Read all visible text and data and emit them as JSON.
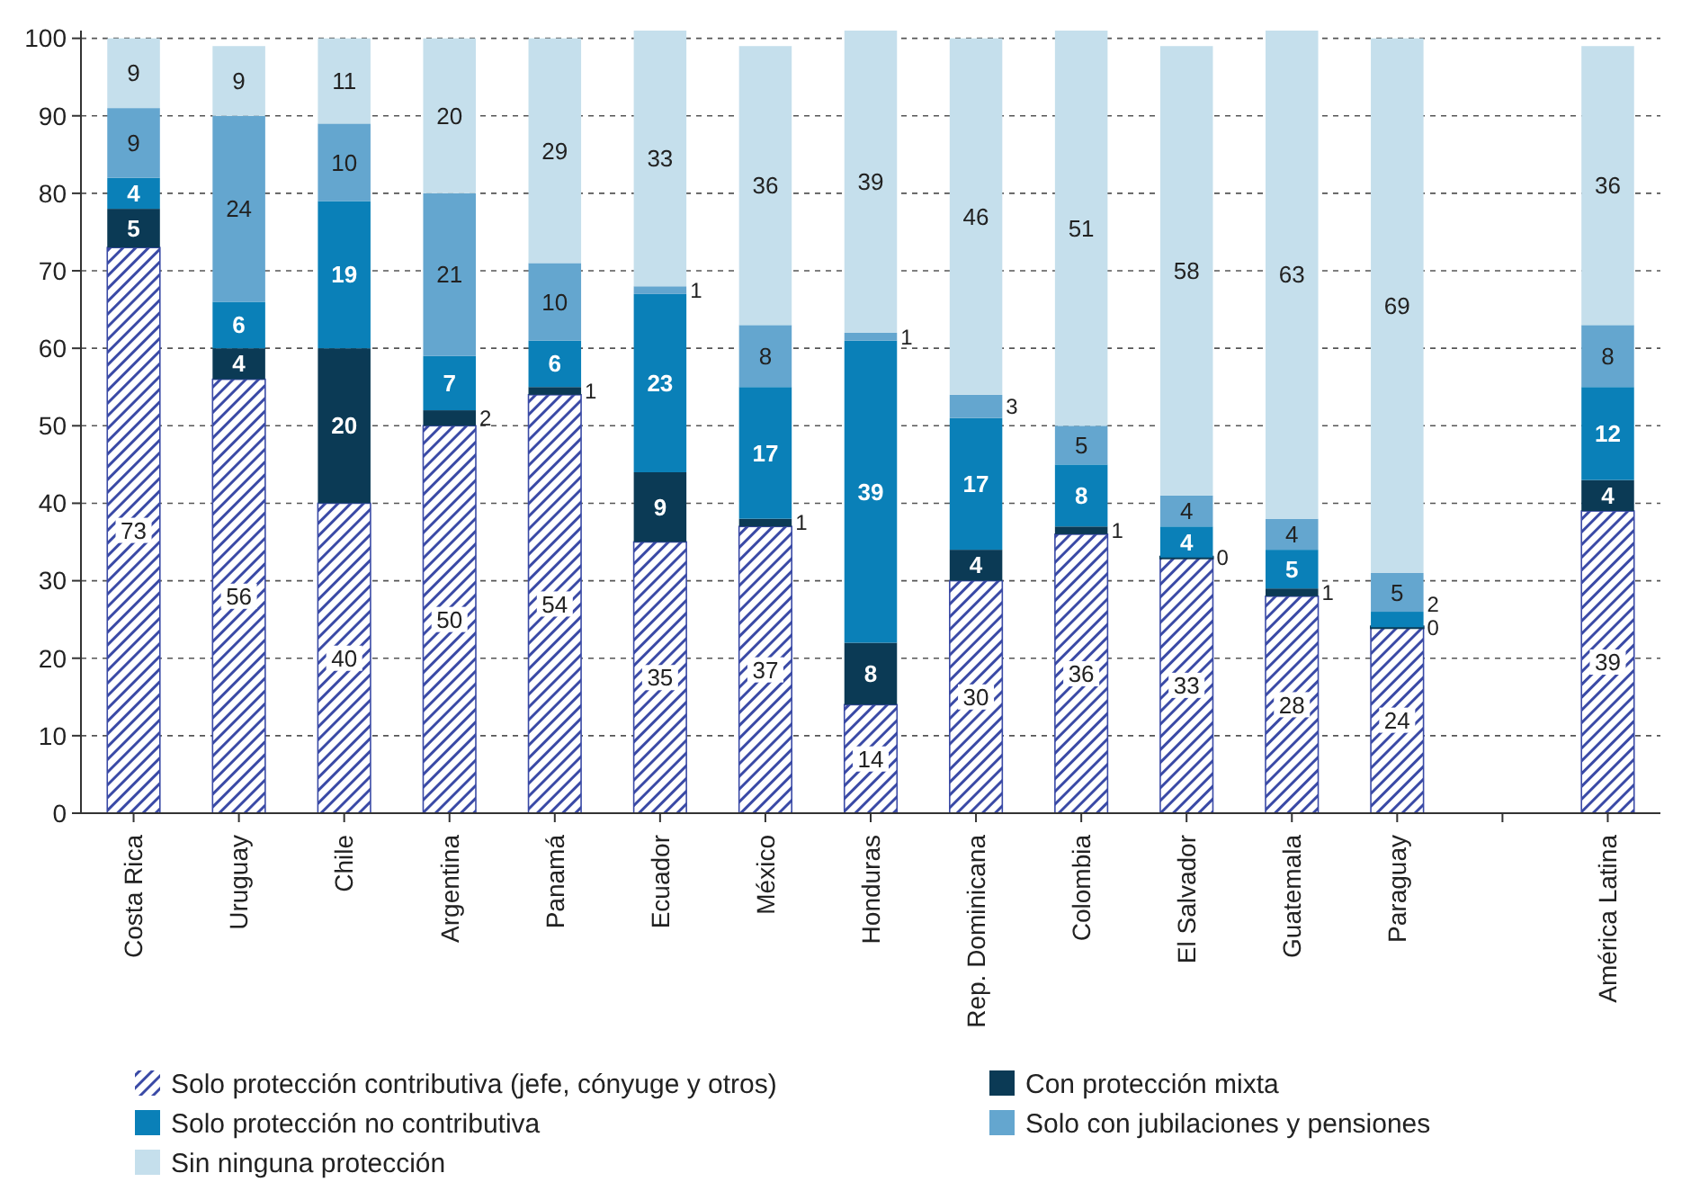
{
  "chart_data": {
    "type": "bar",
    "stacked": true,
    "categories": [
      "Costa Rica",
      "Uruguay",
      "Chile",
      "Argentina",
      "Panamá",
      "Ecuador",
      "México",
      "Honduras",
      "Rep. Dominicana",
      "Colombia",
      "El Salvador",
      "Guatemala",
      "Paraguay",
      null,
      "América Latina"
    ],
    "series": [
      {
        "name": "Solo protección contributiva (jefe, cónyuge y otros)",
        "color": "#3a4aa6",
        "values": [
          73,
          56,
          40,
          50,
          54,
          35,
          37,
          14,
          30,
          36,
          33,
          28,
          24,
          null,
          39
        ]
      },
      {
        "name": "Con protección mixta",
        "color": "#0b3a55",
        "values": [
          5,
          4,
          20,
          2,
          1,
          9,
          1,
          8,
          4,
          1,
          0,
          1,
          0,
          null,
          4
        ]
      },
      {
        "name": "Solo protección no contributiva",
        "color": "#0a80b8",
        "values": [
          4,
          6,
          19,
          7,
          6,
          23,
          17,
          39,
          17,
          8,
          4,
          5,
          2,
          null,
          12
        ]
      },
      {
        "name": "Solo con jubilaciones y pensiones",
        "color": "#64a6cf",
        "values": [
          9,
          24,
          10,
          21,
          10,
          1,
          8,
          1,
          3,
          5,
          4,
          4,
          5,
          null,
          8
        ]
      },
      {
        "name": "Sin ninguna protección",
        "color": "#c5dfec",
        "values": [
          9,
          9,
          11,
          20,
          29,
          33,
          36,
          39,
          46,
          51,
          58,
          63,
          69,
          null,
          36
        ]
      }
    ],
    "ylim": [
      0,
      101
    ],
    "yticks": [
      0,
      10,
      20,
      30,
      40,
      50,
      60,
      70,
      80,
      90,
      100
    ],
    "grid": "y",
    "legend": "bottom",
    "data_labels": true
  }
}
